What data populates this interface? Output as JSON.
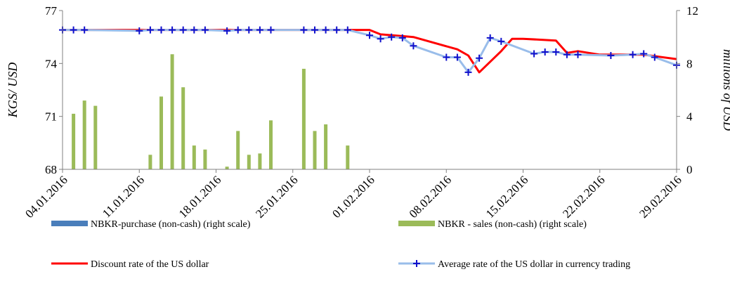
{
  "chart_data": {
    "type": "bar+line",
    "title": "",
    "x_start": "04.01.2016",
    "x_end": "29.02.2016",
    "x_tick_labels": [
      "04.01.2016",
      "11.01.2016",
      "18.01.2016",
      "25.01.2016",
      "01.02.2016",
      "08.02.2016",
      "15.02.2016",
      "22.02.2016",
      "29.02.2016"
    ],
    "y_left": {
      "label": "KGS/ USD",
      "range": [
        68,
        77
      ],
      "ticks": [
        68,
        71,
        74,
        77
      ]
    },
    "y_right": {
      "label": "millions of USD",
      "range": [
        0,
        12
      ],
      "ticks": [
        0,
        4,
        8,
        12
      ]
    },
    "grid": false,
    "legend_position": "bottom",
    "series": [
      {
        "name": "NBKR-purchase (non-cash) (right scale)",
        "kind": "bar",
        "axis": "right",
        "color": "#4A7EBB",
        "points": []
      },
      {
        "name": "NBKR - sales (non-cash) (right scale)",
        "kind": "bar",
        "axis": "right",
        "color": "#9BBB59",
        "points": [
          [
            "05.01.2016",
            4.2
          ],
          [
            "06.01.2016",
            5.2
          ],
          [
            "07.01.2016",
            4.8
          ],
          [
            "12.01.2016",
            1.1
          ],
          [
            "13.01.2016",
            5.5
          ],
          [
            "14.01.2016",
            8.7
          ],
          [
            "15.01.2016",
            6.2
          ],
          [
            "16.01.2016",
            1.8
          ],
          [
            "17.01.2016",
            1.5
          ],
          [
            "19.01.2016",
            0.2
          ],
          [
            "20.01.2016",
            2.9
          ],
          [
            "21.01.2016",
            1.1
          ],
          [
            "22.01.2016",
            1.2
          ],
          [
            "23.01.2016",
            3.7
          ],
          [
            "26.01.2016",
            7.6
          ],
          [
            "27.01.2016",
            2.9
          ],
          [
            "28.01.2016",
            3.4
          ],
          [
            "30.01.2016",
            1.8
          ]
        ]
      },
      {
        "name": "Discount rate of the US dollar",
        "kind": "line",
        "axis": "left",
        "color": "#FF0000",
        "points": [
          [
            "04.01.2016",
            75.9
          ],
          [
            "30.01.2016",
            75.9
          ],
          [
            "01.02.2016",
            75.9
          ],
          [
            "02.02.2016",
            75.65
          ],
          [
            "04.02.2016",
            75.55
          ],
          [
            "05.02.2016",
            75.5
          ],
          [
            "09.02.2016",
            74.8
          ],
          [
            "10.02.2016",
            74.45
          ],
          [
            "11.02.2016",
            73.5
          ],
          [
            "13.02.2016",
            74.7
          ],
          [
            "14.02.2016",
            75.4
          ],
          [
            "15.02.2016",
            75.4
          ],
          [
            "18.02.2016",
            75.3
          ],
          [
            "19.02.2016",
            74.6
          ],
          [
            "20.02.2016",
            74.7
          ],
          [
            "22.02.2016",
            74.5
          ],
          [
            "26.02.2016",
            74.5
          ],
          [
            "29.02.2016",
            74.25
          ]
        ]
      },
      {
        "name": "Average rate of the US dollar in currency trading",
        "kind": "line-marker",
        "axis": "left",
        "color": "#99BDEA",
        "marker_color": "#1010CC",
        "points": [
          [
            "04.01.2016",
            75.9
          ],
          [
            "05.01.2016",
            75.9
          ],
          [
            "06.01.2016",
            75.9
          ],
          [
            "11.01.2016",
            75.85
          ],
          [
            "12.01.2016",
            75.9
          ],
          [
            "13.01.2016",
            75.9
          ],
          [
            "14.01.2016",
            75.9
          ],
          [
            "15.01.2016",
            75.9
          ],
          [
            "16.01.2016",
            75.9
          ],
          [
            "17.01.2016",
            75.9
          ],
          [
            "19.01.2016",
            75.85
          ],
          [
            "20.01.2016",
            75.9
          ],
          [
            "21.01.2016",
            75.9
          ],
          [
            "22.01.2016",
            75.9
          ],
          [
            "23.01.2016",
            75.9
          ],
          [
            "26.01.2016",
            75.9
          ],
          [
            "27.01.2016",
            75.9
          ],
          [
            "28.01.2016",
            75.9
          ],
          [
            "29.01.2016",
            75.9
          ],
          [
            "30.01.2016",
            75.9
          ],
          [
            "01.02.2016",
            75.6
          ],
          [
            "02.02.2016",
            75.4
          ],
          [
            "03.02.2016",
            75.5
          ],
          [
            "04.02.2016",
            75.45
          ],
          [
            "05.02.2016",
            75.0
          ],
          [
            "08.02.2016",
            74.35
          ],
          [
            "09.02.2016",
            74.35
          ],
          [
            "10.02.2016",
            73.5
          ],
          [
            "11.02.2016",
            74.3
          ],
          [
            "12.02.2016",
            75.45
          ],
          [
            "13.02.2016",
            75.25
          ],
          [
            "16.02.2016",
            74.55
          ],
          [
            "17.02.2016",
            74.65
          ],
          [
            "18.02.2016",
            74.65
          ],
          [
            "19.02.2016",
            74.5
          ],
          [
            "20.02.2016",
            74.5
          ],
          [
            "23.02.2016",
            74.45
          ],
          [
            "25.02.2016",
            74.5
          ],
          [
            "26.02.2016",
            74.55
          ],
          [
            "27.02.2016",
            74.35
          ],
          [
            "29.02.2016",
            73.9
          ]
        ]
      }
    ]
  }
}
